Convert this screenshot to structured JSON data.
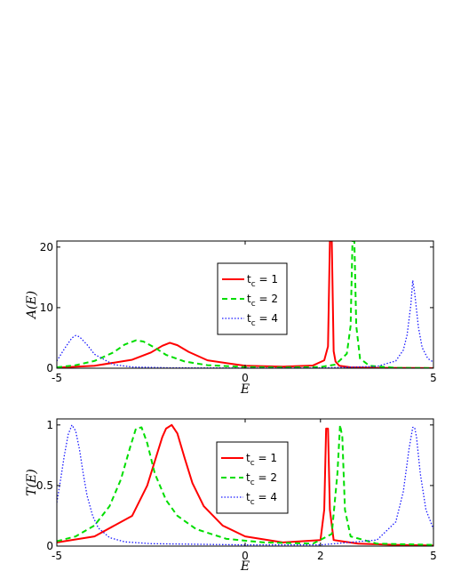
{
  "chart_data": [
    {
      "type": "line",
      "xlabel": "E",
      "ylabel": "A(E)",
      "xlim": [
        -5,
        5
      ],
      "ylim": [
        0,
        21
      ],
      "xticks": [
        -5,
        0,
        5
      ],
      "yticks": [
        0,
        10,
        20
      ],
      "grid": false,
      "legend_position": "center",
      "series": [
        {
          "name": "t_c = 1",
          "color": "#ff0000",
          "style": "solid",
          "x": [
            -5,
            -4,
            -3,
            -2.5,
            -2.2,
            -2.0,
            -1.8,
            -1.5,
            -1,
            0,
            1,
            1.8,
            2.1,
            2.2,
            2.25,
            2.3,
            2.35,
            2.4,
            2.5,
            2.8,
            3.5,
            4.5,
            5
          ],
          "y": [
            0.1,
            0.4,
            1.4,
            2.6,
            3.7,
            4.2,
            3.8,
            2.7,
            1.3,
            0.4,
            0.25,
            0.45,
            1.3,
            3.6,
            21,
            21,
            2.8,
            1.1,
            0.4,
            0.15,
            0.05,
            0.03,
            0.02
          ]
        },
        {
          "name": "t_c = 2",
          "color": "#00dd00",
          "style": "dashed",
          "x": [
            -5,
            -4.5,
            -4,
            -3.5,
            -3.2,
            -2.9,
            -2.7,
            -2.4,
            -2.1,
            -1.6,
            -1,
            0,
            1,
            2,
            2.4,
            2.7,
            2.8,
            2.85,
            2.9,
            2.95,
            3.05,
            3.3,
            4,
            5
          ],
          "y": [
            0.15,
            0.5,
            1.2,
            2.6,
            3.9,
            4.6,
            4.4,
            3.4,
            2.2,
            1.1,
            0.5,
            0.2,
            0.12,
            0.2,
            0.6,
            2.4,
            7,
            21,
            21,
            7,
            1.6,
            0.4,
            0.06,
            0.02
          ]
        },
        {
          "name": "t_c = 4",
          "color": "#1a1aff",
          "style": "dotted",
          "x": [
            -5,
            -4.8,
            -4.6,
            -4.5,
            -4.4,
            -4.2,
            -4,
            -3.5,
            -3,
            -2,
            0,
            2,
            3.5,
            4,
            4.2,
            4.3,
            4.4,
            4.45,
            4.5,
            4.6,
            4.7,
            4.85,
            5
          ],
          "y": [
            1.2,
            3.2,
            5.0,
            5.4,
            5.2,
            3.9,
            2.3,
            0.6,
            0.2,
            0.07,
            0.03,
            0.05,
            0.3,
            1.2,
            3.0,
            5.5,
            10.5,
            14.5,
            12.5,
            6.8,
            3.4,
            1.6,
            1.0
          ]
        }
      ],
      "legend": [
        "t_c = 1",
        "t_c = 2",
        "t_c = 4"
      ]
    },
    {
      "type": "line",
      "xlabel": "E",
      "ylabel": "T(E)",
      "xlim": [
        -5,
        5
      ],
      "ylim": [
        0,
        1.05
      ],
      "xticks": [
        -5,
        0,
        2,
        5
      ],
      "yticks": [
        0,
        0.5,
        1
      ],
      "grid": false,
      "legend_position": "center",
      "series": [
        {
          "name": "t_c = 1",
          "color": "#ff0000",
          "style": "solid",
          "x": [
            -5,
            -4,
            -3,
            -2.6,
            -2.4,
            -2.2,
            -2.1,
            -1.95,
            -1.8,
            -1.6,
            -1.4,
            -1.1,
            -0.6,
            0,
            1,
            2,
            2.1,
            2.15,
            2.2,
            2.25,
            2.35,
            3,
            4,
            5
          ],
          "y": [
            0.03,
            0.08,
            0.25,
            0.5,
            0.7,
            0.9,
            0.97,
            1.0,
            0.93,
            0.72,
            0.52,
            0.33,
            0.17,
            0.08,
            0.03,
            0.05,
            0.3,
            0.97,
            0.97,
            0.3,
            0.05,
            0.02,
            0.01,
            0.005
          ]
        },
        {
          "name": "t_c = 2",
          "color": "#00dd00",
          "style": "dashed",
          "x": [
            -5,
            -4.5,
            -4,
            -3.6,
            -3.3,
            -3.05,
            -2.9,
            -2.75,
            -2.6,
            -2.4,
            -2.1,
            -1.8,
            -1.3,
            -0.5,
            0.5,
            1.8,
            2.3,
            2.45,
            2.52,
            2.58,
            2.65,
            2.8,
            3.5,
            5
          ],
          "y": [
            0.04,
            0.08,
            0.17,
            0.33,
            0.55,
            0.82,
            0.97,
            0.98,
            0.85,
            0.6,
            0.38,
            0.25,
            0.14,
            0.06,
            0.03,
            0.02,
            0.1,
            0.6,
            1.0,
            0.9,
            0.3,
            0.08,
            0.02,
            0.01
          ]
        },
        {
          "name": "t_c = 4",
          "color": "#1a1aff",
          "style": "dotted",
          "x": [
            -5,
            -4.9,
            -4.8,
            -4.7,
            -4.6,
            -4.5,
            -4.4,
            -4.3,
            -4.2,
            -4.05,
            -3.9,
            -3.6,
            -3.2,
            -2.5,
            0,
            2,
            3.5,
            4,
            4.2,
            4.35,
            4.45,
            4.5,
            4.55,
            4.65,
            4.8,
            5
          ],
          "y": [
            0.36,
            0.55,
            0.75,
            0.92,
            1.0,
            0.95,
            0.8,
            0.6,
            0.42,
            0.25,
            0.15,
            0.07,
            0.035,
            0.02,
            0.01,
            0.01,
            0.05,
            0.2,
            0.45,
            0.8,
            0.98,
            0.98,
            0.9,
            0.6,
            0.3,
            0.14
          ]
        }
      ],
      "legend": [
        "t_c = 1",
        "t_c = 2",
        "t_c = 4"
      ]
    }
  ]
}
